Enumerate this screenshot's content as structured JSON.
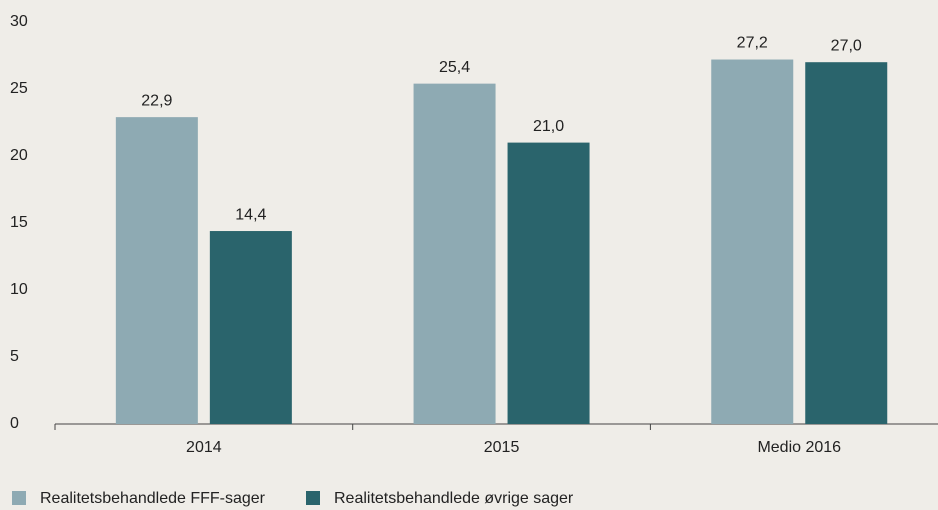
{
  "chart_data": {
    "type": "bar",
    "categories": [
      "2014",
      "2015",
      "Medio 2016"
    ],
    "series": [
      {
        "name": "Realitetsbehandlede FFF-sager",
        "color": "#8eaab3",
        "values": [
          22.9,
          25.4,
          27.2
        ],
        "value_labels": [
          "22,9",
          "25,4",
          "27,2"
        ]
      },
      {
        "name": "Realitetsbehandlede øvrige sager",
        "color": "#2a646c",
        "values": [
          14.4,
          21.0,
          27.0
        ],
        "value_labels": [
          "14,4",
          "21,0",
          "27,0"
        ]
      }
    ],
    "ylim": [
      0,
      30
    ],
    "yticks": [
      0,
      5,
      10,
      15,
      20,
      25,
      30
    ],
    "grid": false,
    "legend": "bottom"
  }
}
